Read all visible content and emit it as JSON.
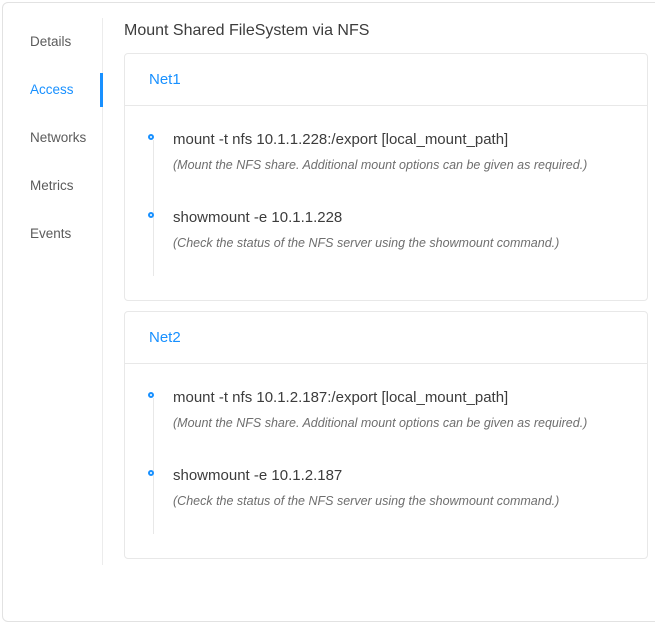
{
  "colors": {
    "accent": "#1890ff",
    "border": "#e8e8e8",
    "text": "#3c3c3c",
    "muted": "#6e6e6e"
  },
  "sidebar": {
    "items": [
      {
        "label": "Details",
        "active": false
      },
      {
        "label": "Access",
        "active": true
      },
      {
        "label": "Networks",
        "active": false
      },
      {
        "label": "Metrics",
        "active": false
      },
      {
        "label": "Events",
        "active": false
      }
    ]
  },
  "header": {
    "title": "Mount Shared FileSystem via NFS"
  },
  "cards": [
    {
      "title": "Net1",
      "steps": [
        {
          "command": "mount -t nfs 10.1.1.228:/export [local_mount_path]",
          "note": "(Mount the NFS share. Additional mount options can be given as required.)"
        },
        {
          "command": "showmount -e 10.1.1.228",
          "note": "(Check the status of the NFS server using the showmount command.)"
        }
      ]
    },
    {
      "title": "Net2",
      "steps": [
        {
          "command": "mount -t nfs 10.1.2.187:/export [local_mount_path]",
          "note": "(Mount the NFS share. Additional mount options can be given as required.)"
        },
        {
          "command": "showmount -e 10.1.2.187",
          "note": "(Check the status of the NFS server using the showmount command.)"
        }
      ]
    }
  ]
}
